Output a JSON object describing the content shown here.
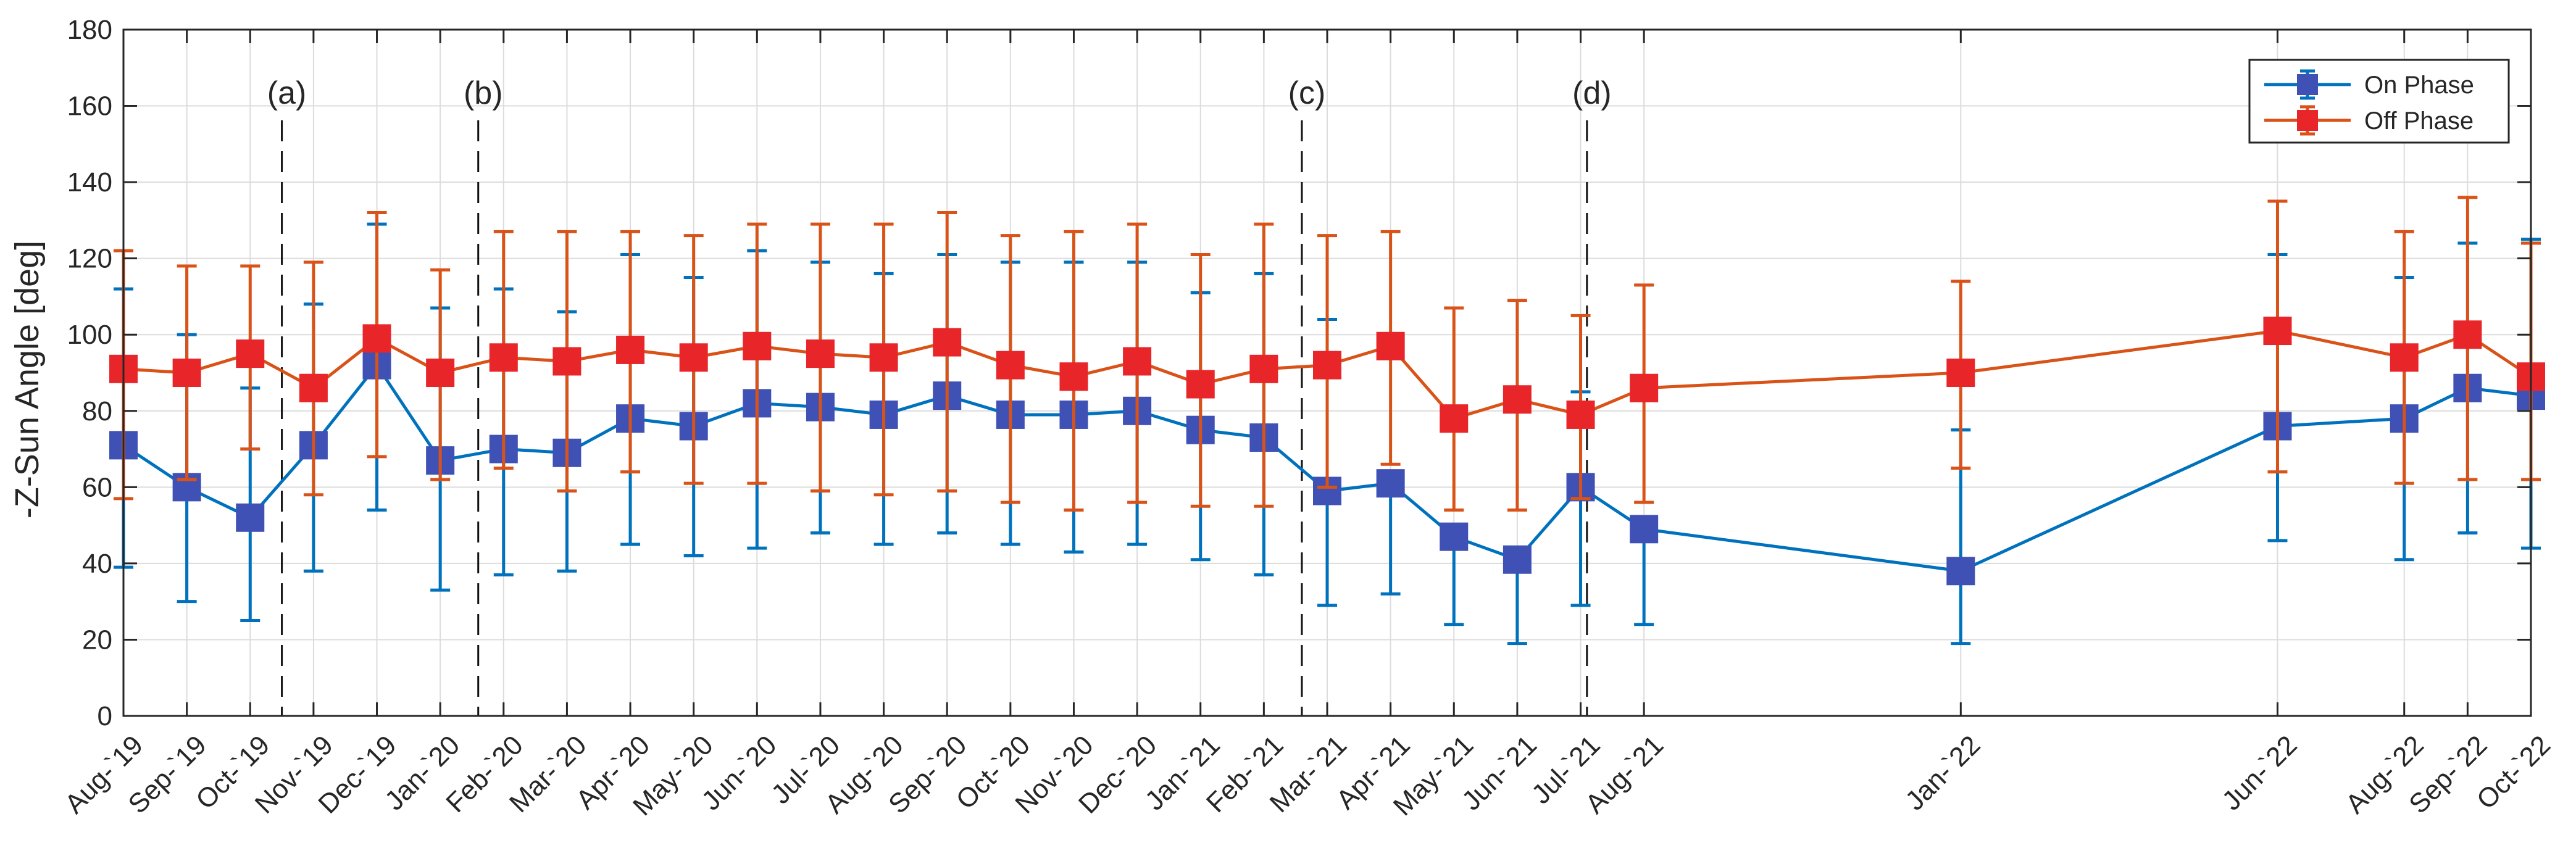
{
  "chart_data": {
    "type": "line",
    "title": "",
    "xlabel": "",
    "ylabel": "-Z-Sun Angle [deg]",
    "ylim": [
      0,
      180
    ],
    "yticks": [
      0,
      20,
      40,
      60,
      80,
      100,
      120,
      140,
      160,
      180
    ],
    "grid": true,
    "legend_position": "top-right",
    "categories": [
      "Aug-`19",
      "Sep-`19",
      "Oct-`19",
      "Nov-`19",
      "Dec-`19",
      "Jan-`20",
      "Feb-`20",
      "Mar-`20",
      "Apr-`20",
      "May-`20",
      "Jun-`20",
      "Jul-`20",
      "Aug-`20",
      "Sep-`20",
      "Oct-`20",
      "Nov-`20",
      "Dec-`20",
      "Jan-`21",
      "Feb-`21",
      "Mar-`21",
      "Apr-`21",
      "May-`21",
      "Jun-`21",
      "Jul-`21",
      "Aug-`21",
      "Jan-`22",
      "Jun-`22",
      "Aug-`22",
      "Sep-`22",
      "Oct-`22"
    ],
    "x_month_index": [
      0,
      1,
      2,
      3,
      4,
      5,
      6,
      7,
      8,
      9,
      10,
      11,
      12,
      13,
      14,
      15,
      16,
      17,
      18,
      19,
      20,
      21,
      22,
      23,
      24,
      29,
      34,
      36,
      37,
      38
    ],
    "series": [
      {
        "name": "On Phase",
        "color": "#0072BD",
        "marker_color": "#3F51B5",
        "values": [
          71,
          60,
          52,
          71,
          92,
          67,
          70,
          69,
          78,
          76,
          82,
          81,
          79,
          84,
          79,
          79,
          80,
          75,
          73,
          59,
          61,
          47,
          41,
          60,
          49,
          38,
          76,
          78,
          86,
          84
        ],
        "lower": [
          39,
          30,
          25,
          38,
          54,
          33,
          37,
          38,
          45,
          42,
          44,
          48,
          45,
          48,
          45,
          43,
          45,
          41,
          37,
          29,
          32,
          24,
          19,
          29,
          24,
          19,
          46,
          41,
          48,
          44
        ],
        "upper": [
          112,
          100,
          86,
          108,
          129,
          107,
          112,
          106,
          121,
          115,
          122,
          119,
          116,
          121,
          119,
          119,
          119,
          111,
          116,
          104,
          null,
          null,
          null,
          85,
          null,
          75,
          121,
          115,
          124,
          125
        ]
      },
      {
        "name": "Off Phase",
        "color": "#D95319",
        "marker_color": "#E8262A",
        "values": [
          91,
          90,
          95,
          86,
          99,
          90,
          94,
          93,
          96,
          94,
          97,
          95,
          94,
          98,
          92,
          89,
          93,
          87,
          91,
          92,
          97,
          78,
          83,
          79,
          86,
          90,
          101,
          94,
          100,
          89
        ],
        "lower": [
          57,
          62,
          70,
          58,
          68,
          62,
          65,
          59,
          64,
          61,
          61,
          59,
          58,
          59,
          56,
          54,
          56,
          55,
          55,
          60,
          66,
          54,
          54,
          57,
          56,
          65,
          64,
          61,
          62,
          62
        ],
        "upper": [
          122,
          118,
          118,
          119,
          132,
          117,
          127,
          127,
          127,
          126,
          129,
          129,
          129,
          132,
          126,
          127,
          129,
          121,
          129,
          126,
          127,
          107,
          109,
          105,
          113,
          114,
          135,
          127,
          136,
          124
        ]
      }
    ],
    "annotations": [
      {
        "label": "(a)",
        "x_month_index": 2.5
      },
      {
        "label": "(b)",
        "x_month_index": 5.6
      },
      {
        "label": "(c)",
        "x_month_index": 18.6
      },
      {
        "label": "(d)",
        "x_month_index": 23.1
      }
    ]
  }
}
